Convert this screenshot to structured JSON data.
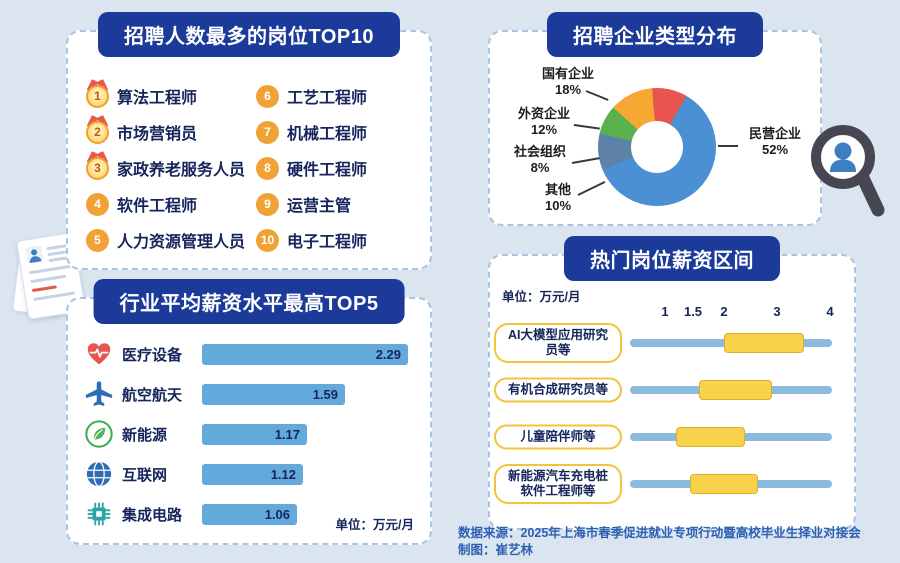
{
  "top10": {
    "title": "招聘人数最多的岗位TOP10",
    "items": [
      {
        "rank": "1",
        "label": "算法工程师"
      },
      {
        "rank": "2",
        "label": "市场营销员"
      },
      {
        "rank": "3",
        "label": "家政养老服务人员"
      },
      {
        "rank": "4",
        "label": "软件工程师"
      },
      {
        "rank": "5",
        "label": "人力资源管理人员"
      },
      {
        "rank": "6",
        "label": "工艺工程师"
      },
      {
        "rank": "7",
        "label": "机械工程师"
      },
      {
        "rank": "8",
        "label": "硬件工程师"
      },
      {
        "rank": "9",
        "label": "运营主管"
      },
      {
        "rank": "10",
        "label": "电子工程师"
      }
    ]
  },
  "donut_panel": {
    "title": "招聘企业类型分布"
  },
  "salary_panel": {
    "title": "行业平均薪资水平最高TOP5",
    "unit": "单位：万元/月"
  },
  "range_panel": {
    "title": "热门岗位薪资区间",
    "unit": "单位：万元/月"
  },
  "footer": {
    "line1": "数据来源：2025年上海市春季促进就业专项行动暨高校毕业生择业对接会",
    "line2": "制图：崔艺林"
  },
  "chart_data": [
    {
      "type": "pie",
      "donut": true,
      "title": "招聘企业类型分布",
      "legend_position": "around",
      "slices": [
        {
          "label": "民营企业",
          "value": 52,
          "pct": "52%",
          "color": "#4a90d2"
        },
        {
          "label": "其他",
          "value": 10,
          "pct": "10%",
          "color": "#5e81a8"
        },
        {
          "label": "社会组织",
          "value": 8,
          "pct": "8%",
          "color": "#58b14c"
        },
        {
          "label": "外资企业",
          "value": 12,
          "pct": "12%",
          "color": "#f6a832"
        },
        {
          "label": "国有企业",
          "value": 18,
          "pct": "18%",
          "color": "#e8544f"
        }
      ]
    },
    {
      "type": "bar",
      "orientation": "horizontal",
      "title": "行业平均薪资水平最高TOP5",
      "unit": "万元/月",
      "categories": [
        "医疗设备",
        "航空航天",
        "新能源",
        "互联网",
        "集成电路"
      ],
      "values": [
        2.29,
        1.59,
        1.17,
        1.12,
        1.06
      ],
      "icons": [
        "heart-pulse-icon",
        "airplane-icon",
        "leaf-icon",
        "globe-icon",
        "chip-icon"
      ],
      "bar_color": "#63a9dc",
      "xlim": [
        0,
        2.4
      ]
    },
    {
      "type": "bar",
      "subtype": "range",
      "title": "热门岗位薪资区间",
      "unit": "万元/月",
      "axis_ticks": [
        1,
        1.5,
        2,
        3,
        4
      ],
      "categories": [
        "AI大模型应用研究员等",
        "有机合成研究员等",
        "儿童陪伴师等",
        "新能源汽车充电桩软件工程师等"
      ],
      "ranges": [
        [
          2,
          3.5
        ],
        [
          1.6,
          2.9
        ],
        [
          1.2,
          2.4
        ],
        [
          1.45,
          2.65
        ]
      ],
      "range_color": "#f8d24b",
      "track_color": "#8abade"
    }
  ]
}
